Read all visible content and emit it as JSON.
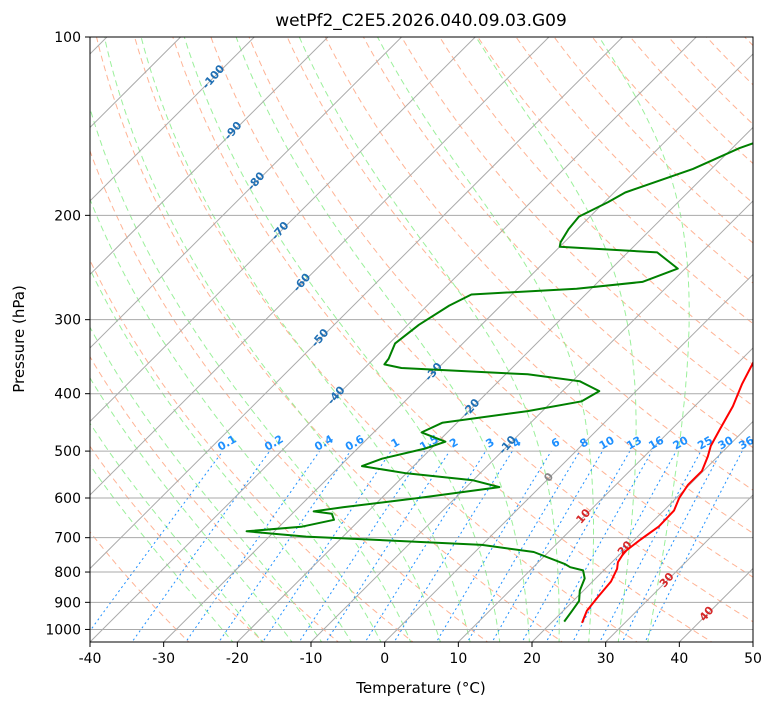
{
  "chart_data": {
    "type": "line",
    "subtype": "skew-T log-P diagram",
    "title": "wetPf2_C2E5.2026.040.09.03.G09",
    "xlabel": "Temperature (°C)",
    "ylabel": "Pressure (hPa)",
    "xlim": [
      -40,
      50
    ],
    "ylim": [
      1050,
      100
    ],
    "y_scale": "log",
    "x_ticks": [
      -40,
      -30,
      -20,
      -10,
      0,
      10,
      20,
      30,
      40,
      50
    ],
    "y_ticks": [
      100,
      200,
      300,
      400,
      500,
      600,
      700,
      800,
      900,
      1000
    ],
    "grid": true,
    "series": [
      {
        "name": "",
        "color": "#ff0000",
        "points": [
          [
            24.2,
            975
          ],
          [
            23.2,
            930
          ],
          [
            22.8,
            880
          ],
          [
            22.5,
            830
          ],
          [
            21.6,
            790
          ],
          [
            20.8,
            770
          ],
          [
            20.3,
            740
          ],
          [
            20.8,
            705
          ],
          [
            21.5,
            670
          ],
          [
            21.4,
            630
          ],
          [
            20.4,
            600
          ],
          [
            19.8,
            570
          ],
          [
            19.8,
            540
          ],
          [
            18.6,
            510
          ],
          [
            17.6,
            490
          ],
          [
            16.6,
            460
          ],
          [
            15.2,
            420
          ],
          [
            13.4,
            385
          ],
          [
            11.8,
            350
          ],
          [
            10.8,
            320
          ],
          [
            9.8,
            290
          ],
          [
            8.2,
            260
          ],
          [
            6.9,
            237
          ],
          [
            7.1,
            220
          ],
          [
            7.0,
            200
          ],
          [
            6.4,
            180
          ],
          [
            4.7,
            165
          ],
          [
            2.7,
            152
          ],
          [
            1.4,
            140
          ],
          [
            1.1,
            126
          ],
          [
            1.1,
            112
          ],
          [
            1.1,
            106
          ],
          [
            2.6,
            100
          ]
        ]
      },
      {
        "name": "",
        "color": "#008000",
        "points": [
          [
            21.6,
            970
          ],
          [
            21.2,
            930
          ],
          [
            20.8,
            895
          ],
          [
            19.5,
            860
          ],
          [
            18.5,
            820
          ],
          [
            17.2,
            795
          ],
          [
            15.0,
            785
          ],
          [
            13.8,
            775
          ],
          [
            8.0,
            740
          ],
          [
            0.0,
            720
          ],
          [
            -15.0,
            706
          ],
          [
            -25.0,
            697
          ],
          [
            -33.8,
            683
          ],
          [
            -27.0,
            671
          ],
          [
            -23.5,
            653
          ],
          [
            -24.6,
            638
          ],
          [
            -27.4,
            632
          ],
          [
            -24.0,
            622
          ],
          [
            -15.0,
            600
          ],
          [
            -5.5,
            575
          ],
          [
            -10.0,
            560
          ],
          [
            -20.0,
            545
          ],
          [
            -27.0,
            530
          ],
          [
            -25.3,
            515
          ],
          [
            -20.8,
            495
          ],
          [
            -19.0,
            482
          ],
          [
            -23.5,
            465
          ],
          [
            -22.0,
            448
          ],
          [
            -12.0,
            428
          ],
          [
            -6.0,
            412
          ],
          [
            -5.0,
            396
          ],
          [
            -9.0,
            381
          ],
          [
            -17.0,
            371
          ],
          [
            -35.0,
            362
          ],
          [
            -37.8,
            357
          ],
          [
            -38.0,
            349
          ],
          [
            -39.2,
            329
          ],
          [
            -38.5,
            306
          ],
          [
            -37.0,
            284
          ],
          [
            -35.5,
            272
          ],
          [
            -22.0,
            266
          ],
          [
            -14.0,
            259
          ],
          [
            -11.0,
            246
          ],
          [
            -16.0,
            231
          ],
          [
            -30.0,
            226
          ],
          [
            -30.5,
            222
          ],
          [
            -31.2,
            211
          ],
          [
            -31.5,
            201
          ],
          [
            -29.5,
            190
          ],
          [
            -28.5,
            183
          ],
          [
            -22.5,
            167
          ],
          [
            -19.0,
            154
          ],
          [
            -14.0,
            142
          ],
          [
            -11.0,
            133
          ],
          [
            -7.5,
            125
          ],
          [
            -4.8,
            116
          ],
          [
            -2.0,
            109
          ],
          [
            2.5,
            101
          ]
        ]
      }
    ],
    "isotherm_labels": [
      "-100",
      "-90",
      "-80",
      "-70",
      "-60",
      "-50",
      "-40",
      "-30",
      "-20",
      "-10",
      "0",
      "10",
      "20",
      "30",
      "40"
    ],
    "mixing_ratio_labels": [
      "0.1",
      "0.2",
      "0.4",
      "0.6",
      "1",
      "1.5",
      "2",
      "3",
      "4",
      "6",
      "8",
      "10",
      "13",
      "16",
      "20",
      "25",
      "30",
      "36"
    ],
    "colors": {
      "isotherm_line": "#aaaaaa",
      "dry_adiabat": "#ffa07a",
      "moist_adiabat": "#90ee90",
      "mixing_ratio": "#1e90ff",
      "cold_label": "#1f6fb4",
      "warm_label": "#d62728",
      "zero_label": "#888888"
    }
  }
}
